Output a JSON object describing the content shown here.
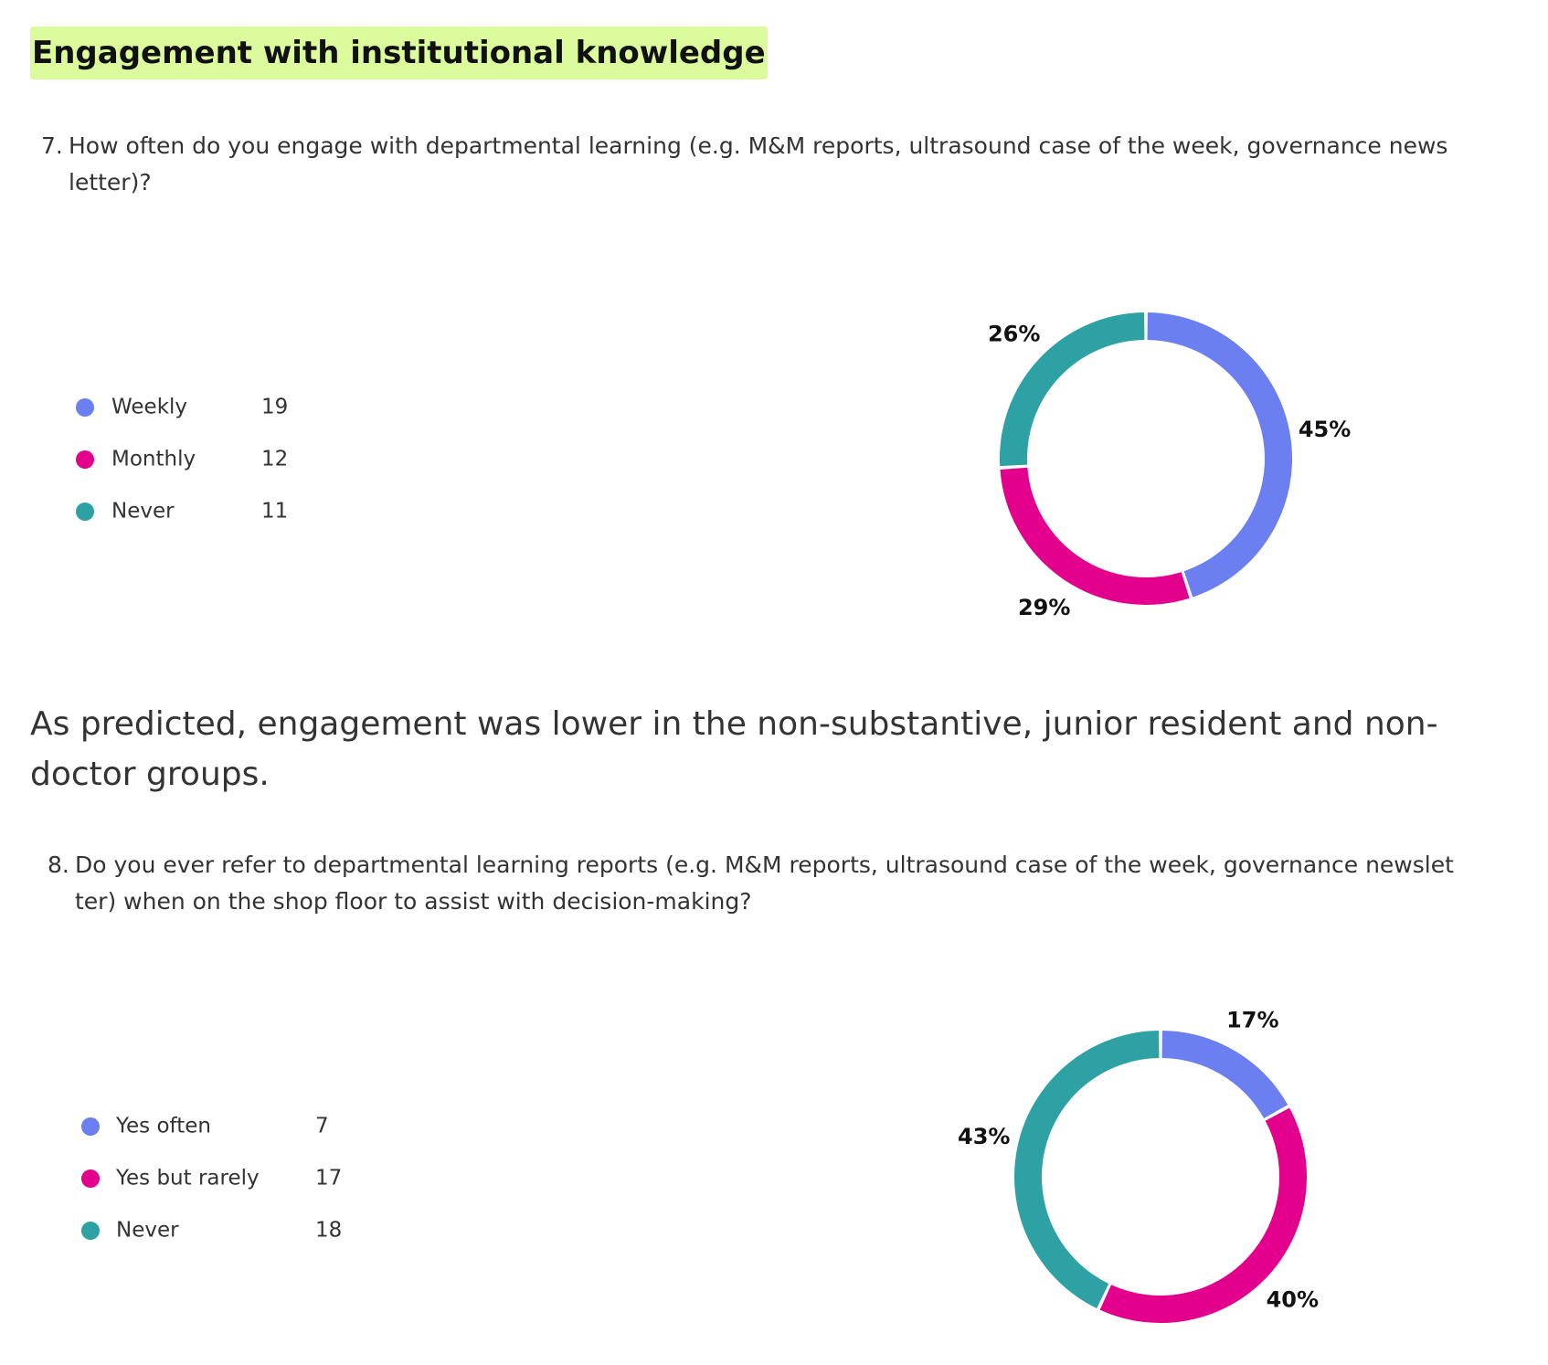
{
  "heading": "Engagement with institutional knowledge",
  "paragraph": "As predicted, engagement was lower in the non-substantive, junior resident and non-doctor groups.",
  "chart_data": [
    {
      "type": "donut",
      "number": "7.",
      "title": "How often do you engage with departmental learning (e.g. M&M reports, ultrasound case of the week, governance newsletter)?",
      "categories": [
        "Weekly",
        "Monthly",
        "Never"
      ],
      "values": [
        19,
        12,
        11
      ],
      "shares": [
        45,
        29,
        26
      ],
      "share_labels": [
        "45%",
        "29%",
        "26%"
      ],
      "colors": [
        "#6b7ff0",
        "#e3008c",
        "#2da1a4"
      ]
    },
    {
      "type": "donut",
      "number": "8.",
      "title": "Do you ever refer to departmental learning reports (e.g. M&M reports, ultrasound case of the week, governance newsletter) when on the shop floor to assist with decision-making?",
      "categories": [
        "Yes often",
        "Yes but rarely",
        "Never"
      ],
      "values": [
        7,
        17,
        18
      ],
      "shares": [
        17,
        40,
        43
      ],
      "share_labels": [
        "17%",
        "40%",
        "43%"
      ],
      "colors": [
        "#6b7ff0",
        "#e3008c",
        "#2da1a4"
      ]
    }
  ]
}
